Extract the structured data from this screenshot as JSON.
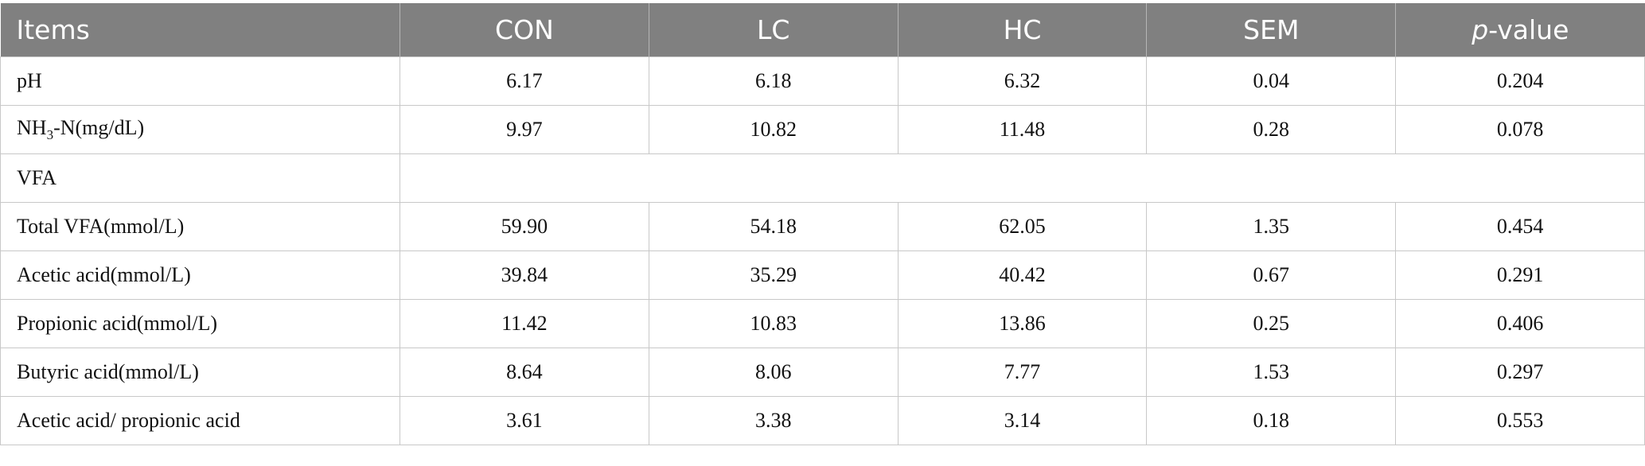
{
  "table": {
    "columns": [
      "Items",
      "CON",
      "LC",
      "HC",
      "SEM",
      {
        "italic": "p",
        "text": "-value"
      }
    ],
    "rows": [
      [
        "pH",
        "6.17",
        "6.18",
        "6.32",
        "0.04",
        "0.204"
      ],
      [
        {
          "text": "NH",
          "sub": "3",
          "rest": "-N(mg/dL)"
        },
        "9.97",
        "10.82",
        "11.48",
        "0.28",
        "0.078"
      ],
      [
        "VFA"
      ],
      [
        "Total VFA(mmol/L)",
        "59.90",
        "54.18",
        "62.05",
        "1.35",
        "0.454"
      ],
      [
        "Acetic acid(mmol/L)",
        "39.84",
        "35.29",
        "40.42",
        "0.67",
        "0.291"
      ],
      [
        "Propionic acid(mmol/L)",
        "11.42",
        "10.83",
        "13.86",
        "0.25",
        "0.406"
      ],
      [
        "Butyric acid(mmol/L)",
        "8.64",
        "8.06",
        "7.77",
        "1.53",
        "0.297"
      ],
      [
        "Acetic acid/ propionic acid",
        "3.61",
        "3.38",
        "3.14",
        "0.18",
        "0.553"
      ]
    ]
  }
}
